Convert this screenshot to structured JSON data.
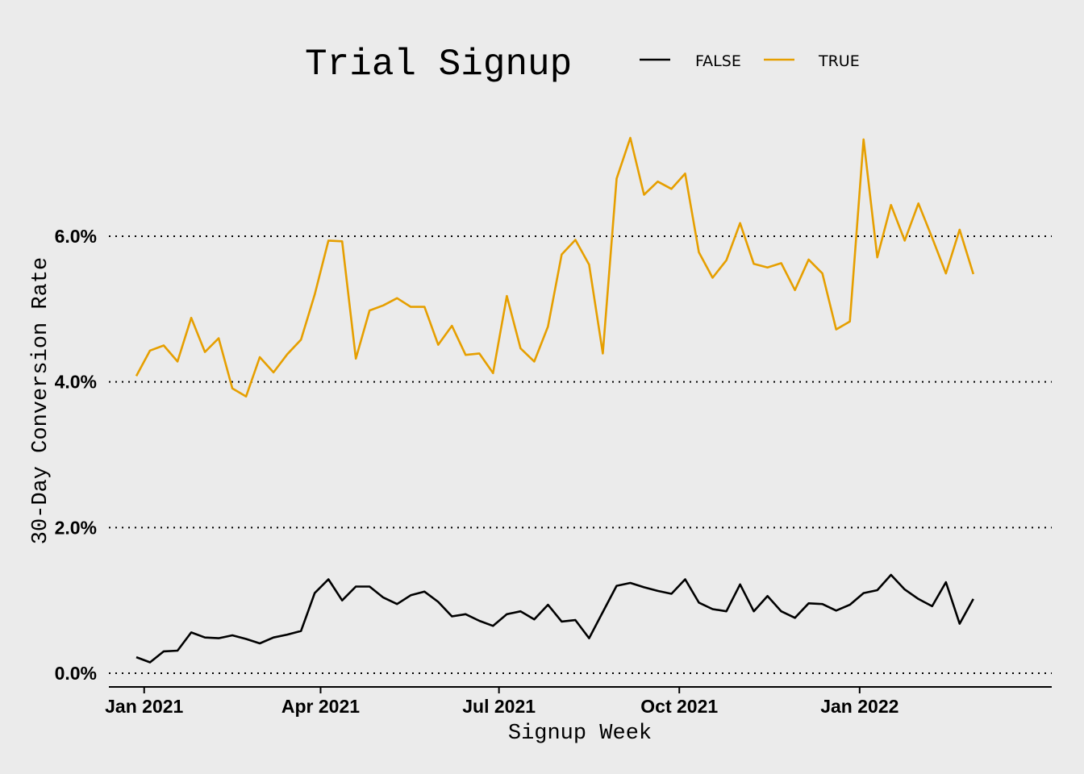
{
  "chart_data": {
    "type": "line",
    "title": "Trial Signup",
    "xlabel": "Signup Week",
    "ylabel": "30-Day Conversion Rate",
    "ylim": [
      0,
      0.0735
    ],
    "yticks": [
      0,
      0.02,
      0.04,
      0.06
    ],
    "ytick_labels": [
      "0.0%",
      "2.0%",
      "4.0%",
      "6.0%"
    ],
    "xlim": [
      "2020-12-14",
      "2022-04-09"
    ],
    "xticks": [
      "2021-01-01",
      "2021-04-01",
      "2021-07-01",
      "2021-10-01",
      "2022-01-01"
    ],
    "xtick_labels": [
      "Jan 2021",
      "Apr 2021",
      "Jul 2021",
      "Oct 2021",
      "Jan 2022"
    ],
    "grid": "horizontal-dotted",
    "legend_position": "top",
    "x": [
      "2020-12-28",
      "2021-01-04",
      "2021-01-11",
      "2021-01-18",
      "2021-01-25",
      "2021-02-01",
      "2021-02-08",
      "2021-02-15",
      "2021-02-22",
      "2021-03-01",
      "2021-03-08",
      "2021-03-15",
      "2021-03-22",
      "2021-03-29",
      "2021-04-05",
      "2021-04-12",
      "2021-04-19",
      "2021-04-26",
      "2021-05-03",
      "2021-05-10",
      "2021-05-17",
      "2021-05-24",
      "2021-05-31",
      "2021-06-07",
      "2021-06-14",
      "2021-06-21",
      "2021-06-28",
      "2021-07-05",
      "2021-07-12",
      "2021-07-19",
      "2021-07-26",
      "2021-08-02",
      "2021-08-09",
      "2021-08-16",
      "2021-08-23",
      "2021-08-30",
      "2021-09-06",
      "2021-09-13",
      "2021-09-20",
      "2021-09-27",
      "2021-10-04",
      "2021-10-11",
      "2021-10-18",
      "2021-10-25",
      "2021-11-01",
      "2021-11-08",
      "2021-11-15",
      "2021-11-22",
      "2021-11-29",
      "2021-12-06",
      "2021-12-13",
      "2021-12-20",
      "2021-12-27",
      "2022-01-03",
      "2022-01-10",
      "2022-01-17",
      "2022-01-24",
      "2022-01-31",
      "2022-02-07",
      "2022-02-14",
      "2022-02-21",
      "2022-02-28",
      "2022-03-07"
    ],
    "series": [
      {
        "name": "FALSE",
        "color": "#000000",
        "values": [
          0.0022,
          0.0015,
          0.003,
          0.0031,
          0.0056,
          0.0049,
          0.0048,
          0.0052,
          0.0047,
          0.0041,
          0.0049,
          0.0053,
          0.0058,
          0.011,
          0.0129,
          0.01,
          0.0119,
          0.0119,
          0.0104,
          0.0095,
          0.0107,
          0.0112,
          0.0098,
          0.0078,
          0.0081,
          0.0072,
          0.0065,
          0.0081,
          0.0085,
          0.0074,
          0.0094,
          0.0071,
          0.0073,
          0.0048,
          0.0084,
          0.012,
          0.0124,
          0.0118,
          0.0113,
          0.0109,
          0.0129,
          0.0097,
          0.0088,
          0.0085,
          0.0122,
          0.0085,
          0.0106,
          0.0085,
          0.0076,
          0.0096,
          0.0095,
          0.0086,
          0.0094,
          0.011,
          0.0114,
          0.0135,
          0.0115,
          0.0102,
          0.0092,
          0.0125,
          0.0068,
          0.0102,
          null
        ]
      },
      {
        "name": "TRUE",
        "color": "#E69F00",
        "values": [
          0.0408,
          0.0443,
          0.045,
          0.0428,
          0.0488,
          0.0441,
          0.046,
          0.0391,
          0.038,
          0.0434,
          0.0413,
          0.0438,
          0.0458,
          0.052,
          0.0594,
          0.0593,
          0.0432,
          0.0498,
          0.0505,
          0.0515,
          0.0503,
          0.0503,
          0.0451,
          0.0477,
          0.0437,
          0.0439,
          0.0412,
          0.0518,
          0.0446,
          0.0428,
          0.0476,
          0.0575,
          0.0595,
          0.0561,
          0.0439,
          0.0679,
          0.0735,
          0.0657,
          0.0675,
          0.0665,
          0.0686,
          0.0578,
          0.0543,
          0.0567,
          0.0618,
          0.0562,
          0.0557,
          0.0563,
          0.0526,
          0.0568,
          0.0549,
          0.0472,
          0.0483,
          0.0733,
          0.0571,
          0.0643,
          0.0594,
          0.0645,
          0.0598,
          0.0549,
          0.0609,
          0.0548,
          null
        ]
      }
    ]
  }
}
